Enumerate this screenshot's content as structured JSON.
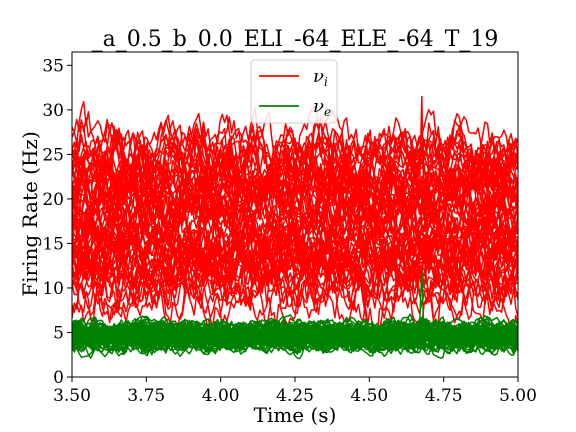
{
  "chart_data": {
    "type": "line",
    "title": "_a_0.5_b_0.0_ELI_-64_ELE_-64_T_19",
    "xlabel": "Time (s)",
    "ylabel": "Firing Rate (Hz)",
    "xlim": [
      3.5,
      5.0
    ],
    "ylim": [
      0,
      36.5
    ],
    "xticks": [
      3.5,
      3.75,
      4.0,
      4.25,
      4.5,
      4.75,
      5.0
    ],
    "xtick_labels": [
      "3.50",
      "3.75",
      "4.00",
      "4.25",
      "4.50",
      "4.75",
      "5.00"
    ],
    "yticks": [
      0,
      5,
      10,
      15,
      20,
      25,
      30,
      35
    ],
    "ytick_labels": [
      "0",
      "5",
      "10",
      "15",
      "20",
      "25",
      "30",
      "35"
    ],
    "grid": false,
    "legend_position": "top-center",
    "series": [
      {
        "name": "ν_i",
        "label_main": "ν",
        "label_sub": "i",
        "color": "#ff0000",
        "trace_count": 64,
        "trace_mean_range": [
          9,
          26
        ],
        "fluctuation_amplitude": 2.8,
        "observed_min": 2.5,
        "observed_max": 31.5,
        "peak": [
          4.68,
          31.5
        ]
      },
      {
        "name": "ν_e",
        "label_main": "ν",
        "label_sub": "e",
        "color": "#008000",
        "trace_count": 64,
        "trace_mean_range": [
          3.6,
          5.6
        ],
        "fluctuation_amplitude": 0.9,
        "observed_min": 2.0,
        "observed_max": 12.0,
        "peak": [
          4.68,
          12.0
        ]
      }
    ]
  }
}
